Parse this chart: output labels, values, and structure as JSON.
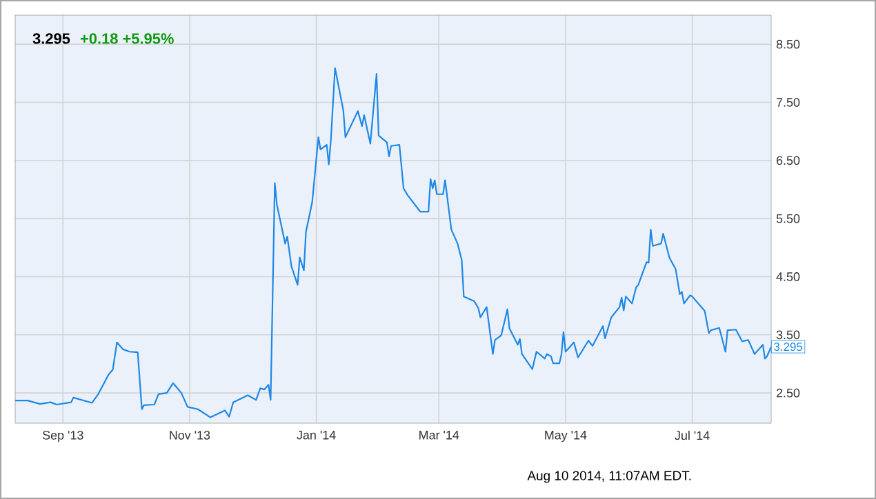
{
  "chart_data": {
    "type": "line",
    "title": "3.295",
    "subtitle": "+0.18 +5.95%",
    "x": [
      "2013-08-09",
      "2013-08-15",
      "2013-08-21",
      "2013-08-26",
      "2013-08-29",
      "2013-09-05",
      "2013-09-06",
      "2013-09-15",
      "2013-09-18",
      "2013-09-23",
      "2013-09-25",
      "2013-09-27",
      "2013-09-30",
      "2013-10-03",
      "2013-10-07",
      "2013-10-09",
      "2013-10-10",
      "2013-10-15",
      "2013-10-17",
      "2013-10-21",
      "2013-10-24",
      "2013-10-28",
      "2013-10-31",
      "2013-11-05",
      "2013-11-11",
      "2013-11-18",
      "2013-11-20",
      "2013-11-22",
      "2013-11-29",
      "2013-12-03",
      "2013-12-05",
      "2013-12-07",
      "2013-12-09",
      "2013-12-10",
      "2013-12-12",
      "2013-12-13",
      "2013-12-17",
      "2013-12-18",
      "2013-12-20",
      "2013-12-23",
      "2013-12-24",
      "2013-12-26",
      "2013-12-27",
      "2013-12-30",
      "2014-01-02",
      "2014-01-03",
      "2014-01-06",
      "2014-01-07",
      "2014-01-08",
      "2014-01-10",
      "2014-01-14",
      "2014-01-15",
      "2014-01-21",
      "2014-01-23",
      "2014-01-24",
      "2014-01-27",
      "2014-01-30",
      "2014-01-31",
      "2014-02-04",
      "2014-02-05",
      "2014-02-06",
      "2014-02-10",
      "2014-02-12",
      "2014-02-14",
      "2014-02-20",
      "2014-02-24",
      "2014-02-25",
      "2014-02-26",
      "2014-02-27",
      "2014-02-28",
      "2014-03-03",
      "2014-03-04",
      "2014-03-07",
      "2014-03-10",
      "2014-03-12",
      "2014-03-13",
      "2014-03-18",
      "2014-03-20",
      "2014-03-21",
      "2014-03-24",
      "2014-03-27",
      "2014-03-28",
      "2014-03-31",
      "2014-04-03",
      "2014-04-04",
      "2014-04-08",
      "2014-04-09",
      "2014-04-10",
      "2014-04-15",
      "2014-04-17",
      "2014-04-21",
      "2014-04-22",
      "2014-04-24",
      "2014-04-25",
      "2014-04-28",
      "2014-04-29",
      "2014-04-30",
      "2014-05-01",
      "2014-05-05",
      "2014-05-07",
      "2014-05-12",
      "2014-05-14",
      "2014-05-19",
      "2014-05-20",
      "2014-05-23",
      "2014-05-27",
      "2014-05-28",
      "2014-05-29",
      "2014-05-30",
      "2014-06-02",
      "2014-06-04",
      "2014-06-05",
      "2014-06-09",
      "2014-06-10",
      "2014-06-11",
      "2014-06-12",
      "2014-06-16",
      "2014-06-17",
      "2014-06-20",
      "2014-06-23",
      "2014-06-25",
      "2014-06-26",
      "2014-06-27",
      "2014-06-30",
      "2014-07-01",
      "2014-07-07",
      "2014-07-09",
      "2014-07-10",
      "2014-07-14",
      "2014-07-17",
      "2014-07-18",
      "2014-07-22",
      "2014-07-25",
      "2014-07-28",
      "2014-07-31",
      "2014-08-04",
      "2014-08-05",
      "2014-08-06",
      "2014-08-08"
    ],
    "series": [
      {
        "color": "#1e88e5",
        "values": [
          2.37,
          2.37,
          2.31,
          2.34,
          2.3,
          2.34,
          2.42,
          2.33,
          2.48,
          2.82,
          2.9,
          3.37,
          3.25,
          3.21,
          3.2,
          2.22,
          2.29,
          2.3,
          2.48,
          2.5,
          2.67,
          2.5,
          2.26,
          2.22,
          2.08,
          2.2,
          2.09,
          2.34,
          2.46,
          2.38,
          2.58,
          2.56,
          2.64,
          2.38,
          6.11,
          5.74,
          5.07,
          5.19,
          4.68,
          4.36,
          4.83,
          4.61,
          5.27,
          5.78,
          6.9,
          6.69,
          6.77,
          6.43,
          6.85,
          8.09,
          7.36,
          6.9,
          7.35,
          7.09,
          7.28,
          6.79,
          7.99,
          6.93,
          6.81,
          6.57,
          6.75,
          6.77,
          6.02,
          5.9,
          5.62,
          5.62,
          6.18,
          6.02,
          6.16,
          5.92,
          5.92,
          6.16,
          5.31,
          5.07,
          4.79,
          4.16,
          4.08,
          3.96,
          3.8,
          3.98,
          3.17,
          3.41,
          3.49,
          3.94,
          3.61,
          3.33,
          3.43,
          3.17,
          2.91,
          3.21,
          3.09,
          3.17,
          3.13,
          3.01,
          3.01,
          3.16,
          3.55,
          3.21,
          3.37,
          3.11,
          3.4,
          3.31,
          3.65,
          3.44,
          3.8,
          3.98,
          4.14,
          3.92,
          4.16,
          4.04,
          4.32,
          4.36,
          4.75,
          4.74,
          5.31,
          5.03,
          5.07,
          5.24,
          4.83,
          4.63,
          4.2,
          4.24,
          4.04,
          4.18,
          4.16,
          3.91,
          3.53,
          3.58,
          3.62,
          3.21,
          3.58,
          3.59,
          3.39,
          3.41,
          3.17,
          3.33,
          3.09,
          3.13,
          3.295
        ]
      }
    ],
    "xlim": [
      "2013-08-09",
      "2014-08-08"
    ],
    "xticks": [
      {
        "value": "2013-09-01",
        "label": "Sep '13"
      },
      {
        "value": "2013-11-01",
        "label": "Nov '13"
      },
      {
        "value": "2014-01-01",
        "label": "Jan '14"
      },
      {
        "value": "2014-03-01",
        "label": "Mar '14"
      },
      {
        "value": "2014-05-01",
        "label": "May '14"
      },
      {
        "value": "2014-07-01",
        "label": "Jul '14"
      }
    ],
    "ylim": [
      1.98,
      9.0
    ],
    "yticks": [
      {
        "value": 2.5,
        "label": "2.50"
      },
      {
        "value": 3.5,
        "label": "3.50"
      },
      {
        "value": 4.5,
        "label": "4.50"
      },
      {
        "value": 5.5,
        "label": "5.50"
      },
      {
        "value": 6.5,
        "label": "6.50"
      },
      {
        "value": 7.5,
        "label": "7.50"
      },
      {
        "value": 8.5,
        "label": "8.50"
      }
    ],
    "grid": true,
    "annotations": [
      {
        "text": "3.295",
        "x": "2014-08-08",
        "y": 3.295
      },
      "Aug 10 2014, 11:07AM EDT."
    ]
  }
}
